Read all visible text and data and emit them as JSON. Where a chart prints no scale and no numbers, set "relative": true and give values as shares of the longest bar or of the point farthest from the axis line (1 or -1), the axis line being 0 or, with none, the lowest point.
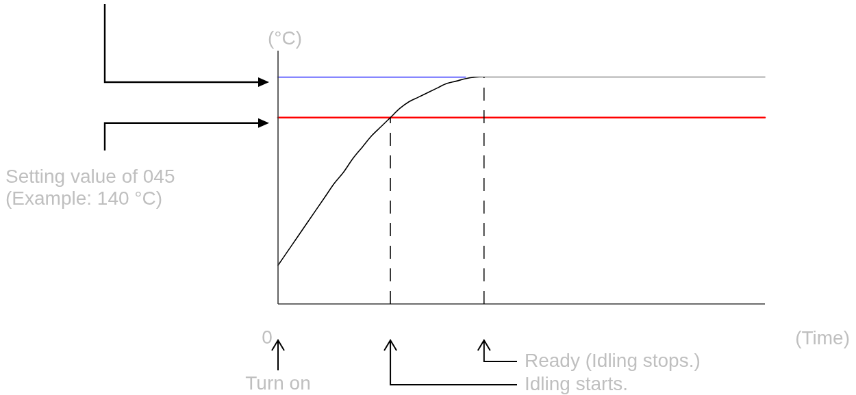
{
  "chart_data": {
    "type": "line",
    "relative": true,
    "ylabel": "(°C)",
    "xlabel": "(Time)",
    "categories": [
      null,
      null,
      null,
      null,
      null,
      null,
      null,
      null,
      null,
      null,
      null,
      null,
      null,
      null,
      null,
      null,
      null,
      null,
      null,
      null,
      null,
      null,
      null,
      null,
      null,
      null,
      null,
      null,
      null,
      null,
      null,
      null,
      null,
      null,
      null,
      null,
      null,
      null,
      null,
      null,
      null,
      null,
      null,
      null,
      null,
      null,
      null,
      null,
      null,
      null,
      null,
      null,
      null
    ],
    "series": [
      {
        "color": "#000000",
        "values": [
          0.17,
          0.23,
          0.29,
          0.35,
          0.41,
          0.47,
          0.53,
          0.58,
          0.64,
          0.69,
          0.74,
          0.78,
          0.82,
          0.86,
          0.89,
          0.91,
          0.93,
          0.95,
          0.97,
          0.98,
          0.991,
          0.998,
          1,
          1,
          1,
          1,
          1,
          1,
          1,
          1,
          1,
          1,
          1,
          1,
          1,
          1,
          1,
          1,
          1,
          1,
          1,
          1,
          1,
          1,
          1,
          1,
          1,
          1,
          1,
          1,
          1,
          1,
          1
        ]
      },
      {
        "color": "#0000ff",
        "values": [
          1,
          1,
          1,
          1,
          1,
          1,
          1,
          1,
          1,
          1,
          1,
          1,
          1,
          1,
          1,
          1,
          1,
          1,
          1,
          1,
          1,
          null,
          null,
          null,
          null,
          null,
          null,
          null,
          null,
          null,
          null,
          null,
          null,
          null,
          null,
          null,
          null,
          null,
          null,
          null,
          null,
          null,
          null,
          null,
          null,
          null,
          null,
          null,
          null,
          null,
          null,
          null,
          null
        ]
      },
      {
        "color": "#ff0000",
        "values": [
          0.82,
          0.82,
          0.82,
          0.82,
          0.82,
          0.82,
          0.82,
          0.82,
          0.82,
          0.82,
          0.82,
          0.82,
          0.82,
          0.82,
          0.82,
          0.82,
          0.82,
          0.82,
          0.82,
          0.82,
          0.82,
          0.82,
          0.82,
          0.82,
          0.82,
          0.82,
          0.82,
          0.82,
          0.82,
          0.82,
          0.82,
          0.82,
          0.82,
          0.82,
          0.82,
          0.82,
          0.82,
          0.82,
          0.82,
          0.82,
          0.82,
          0.82,
          0.82,
          0.82,
          0.82,
          0.82,
          0.82,
          0.82,
          0.82,
          0.82,
          0.82,
          0.82,
          0.82
        ]
      }
    ],
    "annotations": [
      "Setting value of 045 (Example: 140 °C)",
      "0",
      "Turn on",
      "Idling starts.",
      "Ready (Idling stops.)"
    ]
  }
}
